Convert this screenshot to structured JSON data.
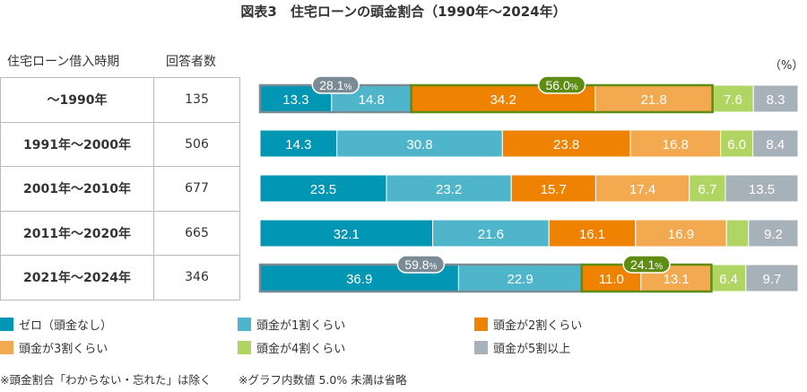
{
  "chart_data": {
    "type": "bar",
    "orientation": "horizontal-stacked-100",
    "title": "図表3　住宅ローンの頭金割合（1990年～2024年）",
    "unit": "（%）",
    "table_headers": [
      "住宅ローン借入時期",
      "回答者数"
    ],
    "categories": [
      "～1990年",
      "1991年～2000年",
      "2001年～2010年",
      "2011年～2020年",
      "2021年～2024年"
    ],
    "respondents": [
      "135",
      "506",
      "677",
      "665",
      "346"
    ],
    "series": [
      {
        "name": "ゼロ（頭金なし）",
        "color": "#0096b4",
        "values": [
          13.3,
          14.3,
          23.5,
          32.1,
          36.9
        ]
      },
      {
        "name": "頭金が1割くらい",
        "color": "#4fb5ca",
        "values": [
          14.8,
          30.8,
          23.2,
          21.6,
          22.9
        ]
      },
      {
        "name": "頭金が2割くらい",
        "color": "#ef8200",
        "values": [
          34.2,
          23.8,
          15.7,
          16.1,
          11.0
        ]
      },
      {
        "name": "頭金が3割くらい",
        "color": "#f3a94f",
        "values": [
          21.8,
          16.8,
          17.4,
          16.9,
          13.1
        ]
      },
      {
        "name": "頭金が4割くらい",
        "color": "#b0d563",
        "values": [
          7.6,
          6.0,
          6.7,
          4.1,
          6.4
        ]
      },
      {
        "name": "頭金が5割以上",
        "color": "#a7b1b9",
        "values": [
          8.3,
          8.4,
          13.5,
          9.2,
          9.7
        ]
      }
    ],
    "hidden_labels_below": 5.0,
    "callouts": [
      {
        "row": 0,
        "from": 0,
        "to": 1,
        "label": "28.1",
        "pct": "%",
        "color": "#7b8b96"
      },
      {
        "row": 0,
        "from": 2,
        "to": 3,
        "label": "56.0",
        "pct": "%",
        "color": "#5f8c12"
      },
      {
        "row": 4,
        "from": 0,
        "to": 1,
        "label": "59.8",
        "pct": "%",
        "color": "#7b8b96"
      },
      {
        "row": 4,
        "from": 2,
        "to": 3,
        "label": "24.1",
        "pct": "%",
        "color": "#5f8c12"
      }
    ],
    "legend_position": "bottom"
  },
  "notes": [
    "※頭金割合「わからない・忘れた」は除く",
    "※グラフ内数値 5.0% 未満は省略"
  ]
}
